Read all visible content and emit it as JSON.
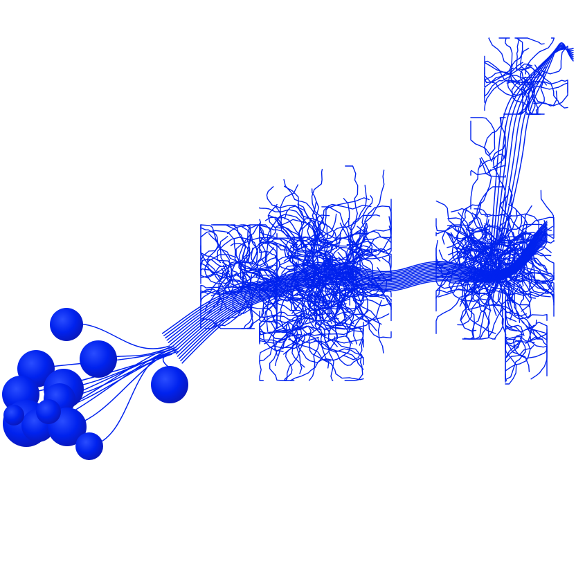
{
  "scene": {
    "background_color": "#ffffff",
    "neuron_color": "#0022ee",
    "soma_highlight_color": "#2a4dff",
    "soma_shadow_color": "#0a17b8",
    "soma_count": 13
  }
}
